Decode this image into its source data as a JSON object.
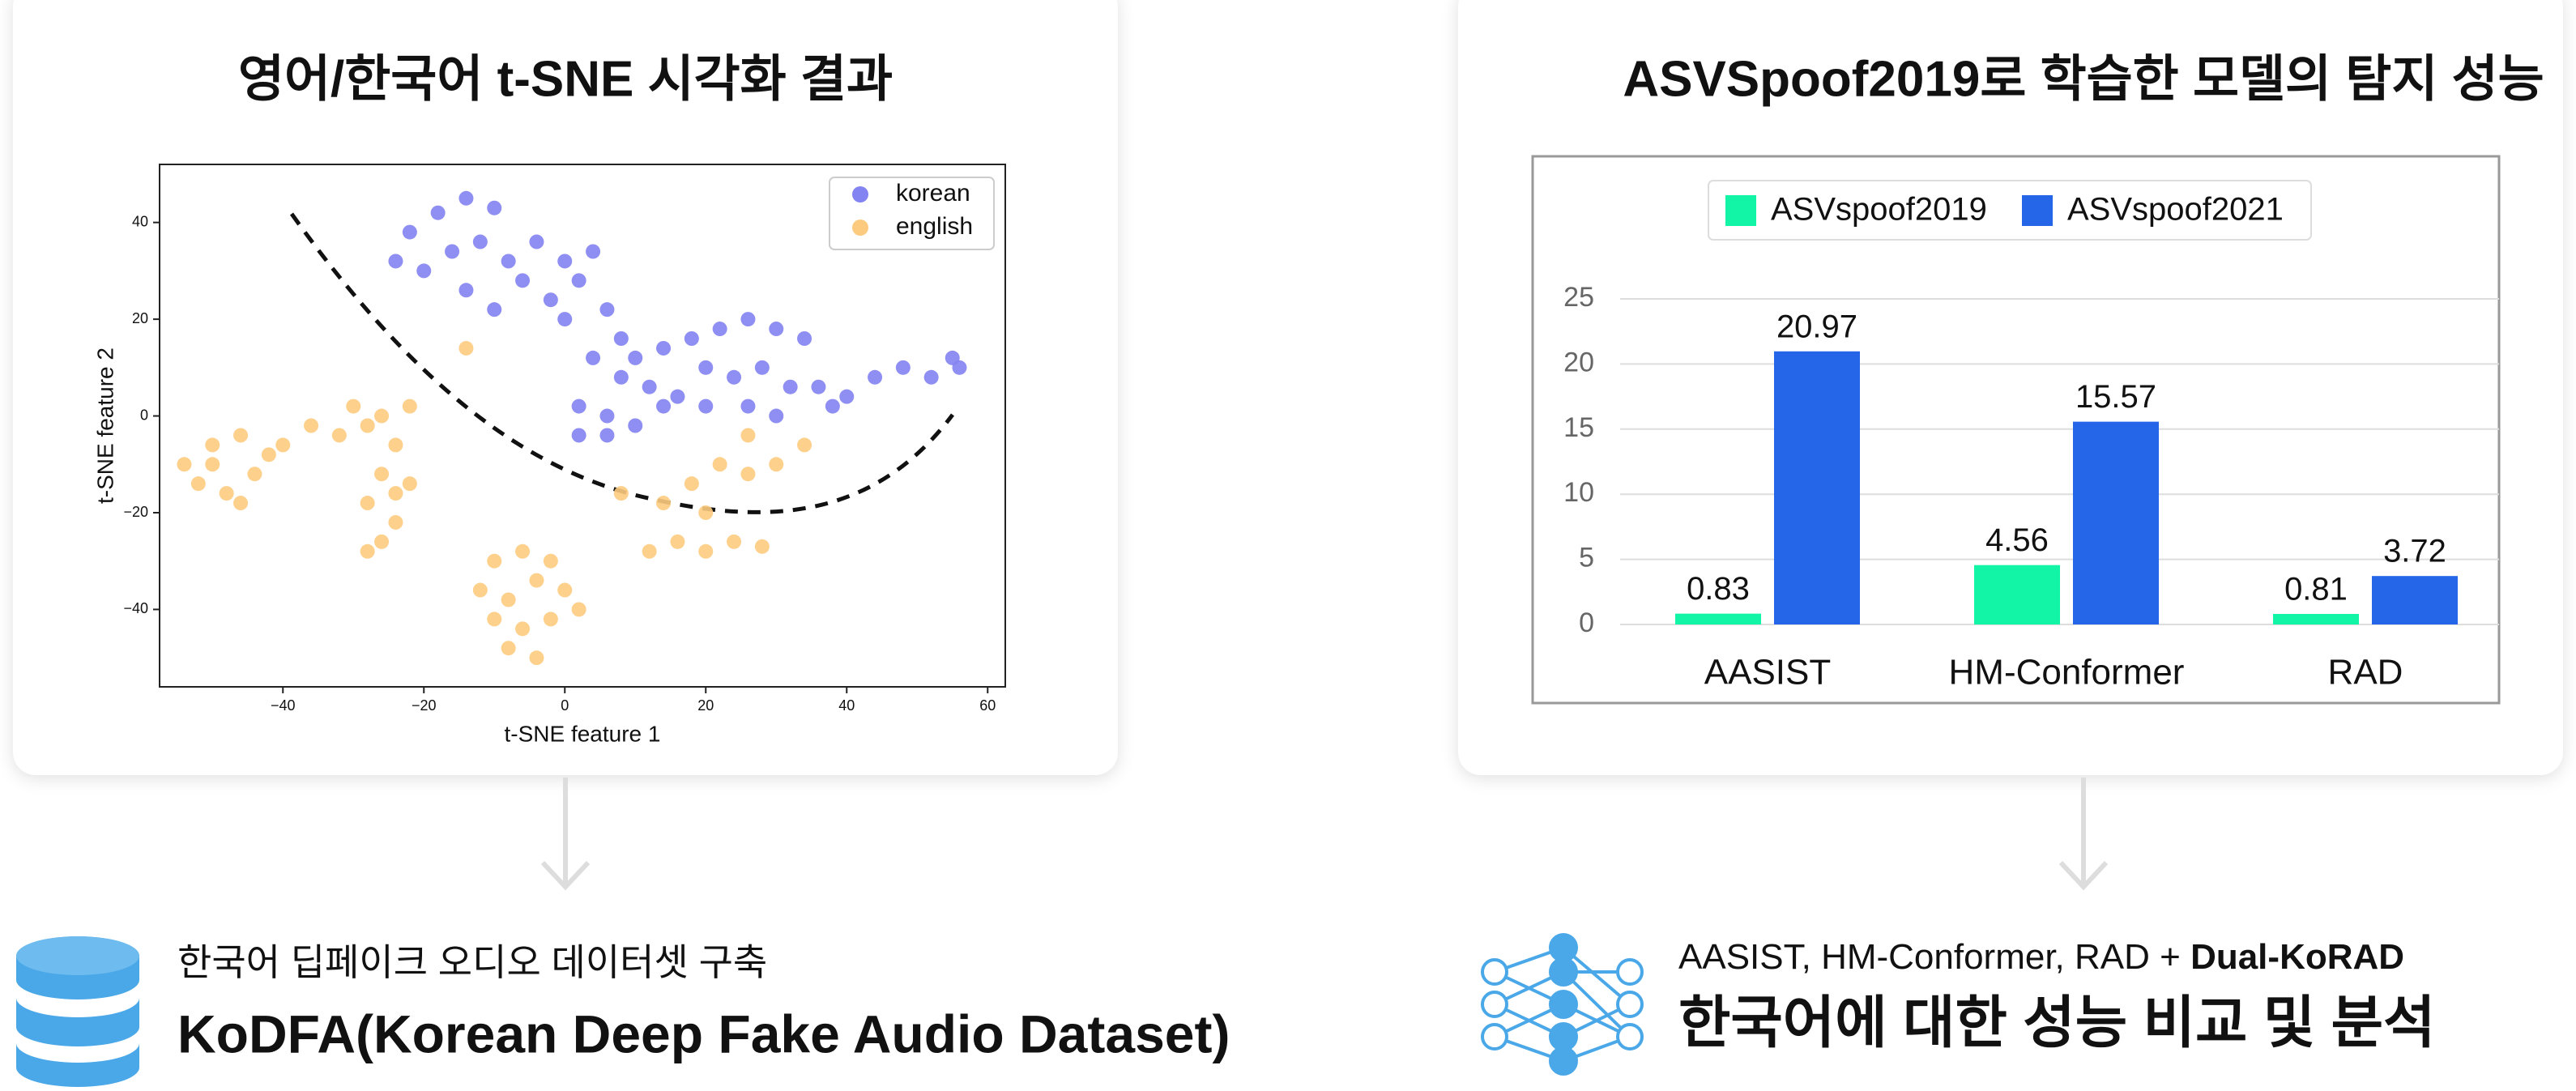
{
  "chart_data": [
    {
      "type": "scatter",
      "title": "영어/한국어 t-SNE 시각화 결과",
      "x_label": "t-SNE feature 1",
      "y_label": "t-SNE feature 2",
      "xlim": [
        -57.5,
        62.5
      ],
      "ylim": [
        -56,
        52
      ],
      "xticks": [
        {
          "value": -40,
          "label": "−40"
        },
        {
          "value": -20,
          "label": "−20"
        },
        0,
        20,
        40,
        60
      ],
      "yticks": [
        {
          "value": -40,
          "label": "−40"
        },
        {
          "value": -20,
          "label": "−20"
        },
        0,
        20,
        40
      ],
      "legend": "upper right",
      "series": [
        {
          "name": "korean",
          "color": "#8383f2",
          "x": [
            -22,
            -18,
            -14,
            -10,
            -20,
            -16,
            -12,
            -8,
            -24,
            -14,
            -10,
            -6,
            -4,
            0,
            2,
            4,
            -2,
            0,
            6,
            8,
            4,
            10,
            14,
            18,
            22,
            26,
            30,
            34,
            20,
            24,
            28,
            32,
            36,
            16,
            12,
            8,
            2,
            6,
            10,
            14,
            20,
            26,
            30,
            2,
            6,
            40,
            44,
            48,
            52,
            55,
            56,
            38
          ],
          "values": [
            38,
            42,
            45,
            43,
            30,
            34,
            36,
            32,
            32,
            26,
            22,
            28,
            36,
            32,
            28,
            34,
            24,
            20,
            22,
            16,
            12,
            12,
            14,
            16,
            18,
            20,
            18,
            16,
            10,
            8,
            10,
            6,
            6,
            4,
            6,
            8,
            2,
            0,
            -2,
            2,
            2,
            2,
            0,
            -4,
            -4,
            4,
            8,
            10,
            8,
            12,
            10,
            2
          ]
        },
        {
          "name": "english",
          "color": "#fdcb80",
          "x": [
            -54,
            -50,
            -46,
            -42,
            -52,
            -48,
            -44,
            -40,
            -50,
            -46,
            -36,
            -32,
            -30,
            -26,
            -22,
            -28,
            -24,
            -26,
            -24,
            -28,
            -24,
            -26,
            -28,
            -22,
            -10,
            -6,
            -2,
            -12,
            -8,
            -4,
            0,
            -10,
            -6,
            -2,
            -8,
            -4,
            2,
            12,
            16,
            20,
            24,
            28,
            14,
            18,
            22,
            26,
            30,
            34,
            20,
            26,
            8,
            -14
          ],
          "values": [
            -10,
            -6,
            -4,
            -8,
            -14,
            -16,
            -12,
            -6,
            -10,
            -18,
            -2,
            -4,
            2,
            0,
            2,
            -2,
            -6,
            -12,
            -16,
            -18,
            -22,
            -26,
            -28,
            -14,
            -30,
            -28,
            -30,
            -36,
            -38,
            -34,
            -36,
            -42,
            -44,
            -42,
            -48,
            -50,
            -40,
            -28,
            -26,
            -28,
            -26,
            -27,
            -18,
            -14,
            -10,
            -12,
            -10,
            -6,
            -20,
            -4,
            -16,
            14
          ]
        }
      ]
    },
    {
      "type": "bar",
      "title": "ASVSpoof2019로 학습한 모델의 탐지 성능",
      "categories": [
        "AASIST",
        "HM-Conformer",
        "RAD"
      ],
      "ylim": [
        0,
        25
      ],
      "yticks": [
        0,
        5,
        10,
        15,
        20,
        25
      ],
      "grid": true,
      "legend": "upper center",
      "series": [
        {
          "name": "ASVspoof2019",
          "color": "#12f5a6",
          "values": [
            0.83,
            4.56,
            0.81
          ]
        },
        {
          "name": "ASVspoof2021",
          "color": "#2566e8",
          "values": [
            20.97,
            15.57,
            3.72
          ]
        }
      ]
    }
  ],
  "bottom_left": {
    "subtitle": "한국어 딥페이크 오디오 데이터셋 구축",
    "title": "KoDFA(Korean Deep Fake Audio Dataset)"
  },
  "bottom_right": {
    "subtitle": "AASIST, HM-Conformer, RAD + ",
    "subtitle_emphasis": "Dual-KoRAD",
    "title": "한국어에 대한 성능 비교 및 분석"
  }
}
